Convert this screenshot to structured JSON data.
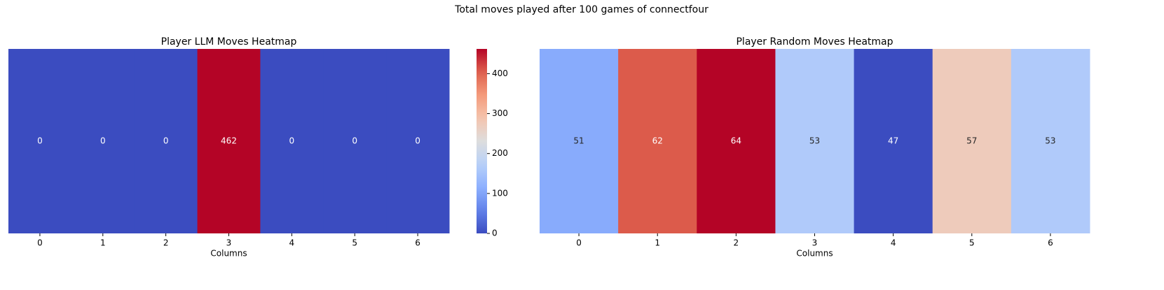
{
  "title": "Total moves played after 100 games of connectfour",
  "chart_data": [
    {
      "type": "heatmap",
      "title": "Player LLM Moves Heatmap",
      "xlabel": "Columns",
      "categories": [
        "0",
        "1",
        "2",
        "3",
        "4",
        "5",
        "6"
      ],
      "values": [
        0,
        0,
        0,
        462,
        0,
        0,
        0
      ],
      "colormap": "coolwarm",
      "colorbar": true,
      "clim": [
        0,
        462
      ],
      "cticks": [
        0,
        100,
        200,
        300,
        400
      ]
    },
    {
      "type": "heatmap",
      "title": "Player Random Moves Heatmap",
      "xlabel": "Columns",
      "categories": [
        "0",
        "1",
        "2",
        "3",
        "4",
        "5",
        "6"
      ],
      "values": [
        51,
        62,
        64,
        53,
        47,
        57,
        53
      ],
      "colormap": "coolwarm",
      "colorbar": false
    }
  ]
}
